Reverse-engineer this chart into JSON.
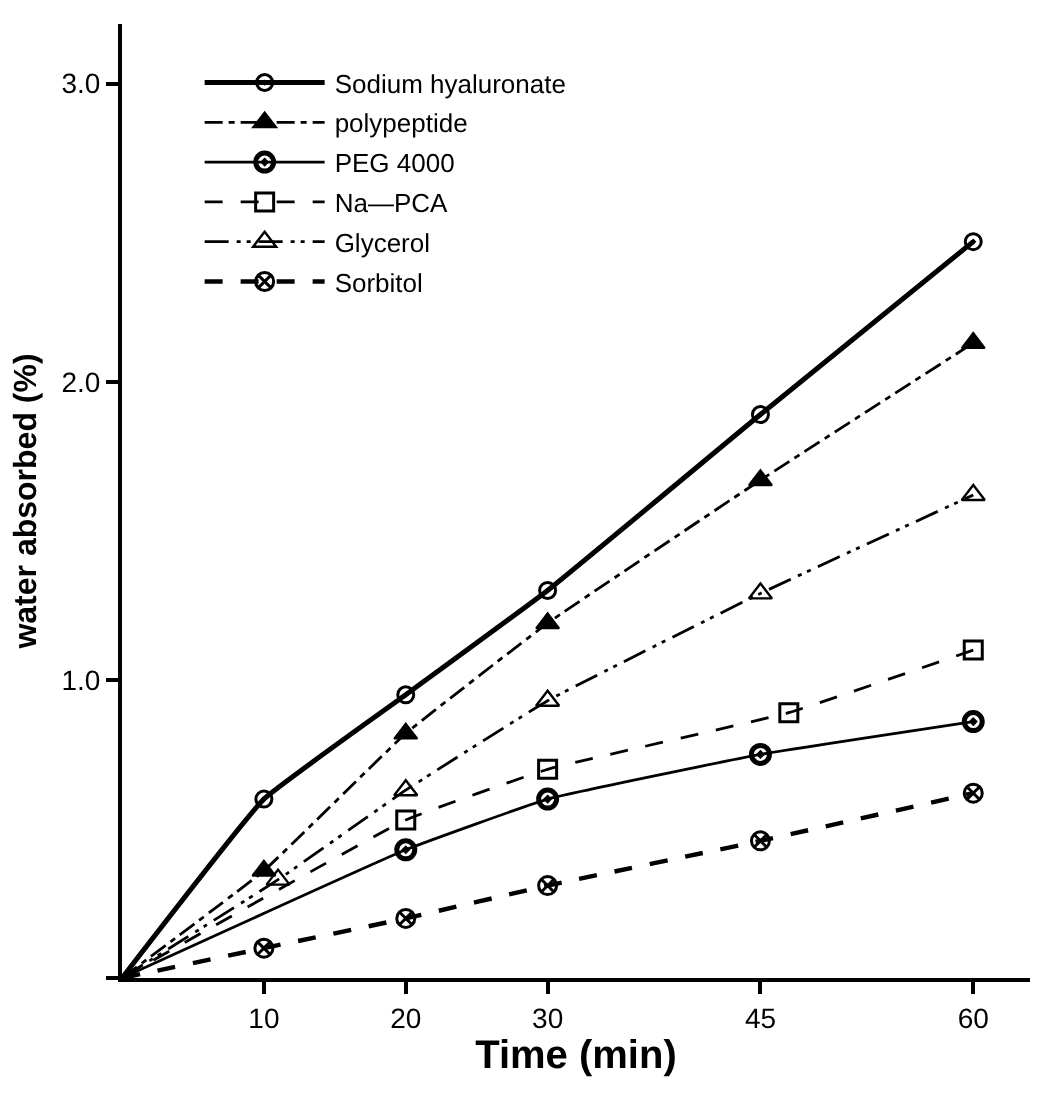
{
  "chart_data": {
    "type": "line",
    "xlabel": "Time (min)",
    "ylabel": "water absorbed (%)",
    "xlim": [
      0,
      64
    ],
    "ylim": [
      0,
      3.2
    ],
    "xticks": [
      10,
      20,
      30,
      45,
      60
    ],
    "yticks": [
      {
        "value": 0,
        "label": null
      },
      {
        "value": 1.0,
        "label": "1.0"
      },
      {
        "value": 2.0,
        "label": "2.0"
      },
      {
        "value": 3.0,
        "label": "3.0"
      }
    ],
    "legend": "top left",
    "series": [
      {
        "name": "Sodium hyaluronate",
        "color": "#000000",
        "marker": "circle",
        "line_style": "solid",
        "x": [
          0,
          10,
          20,
          30,
          45,
          60
        ],
        "values": [
          0,
          0.6,
          0.95,
          1.3,
          1.89,
          2.47
        ]
      },
      {
        "name": "polypeptide",
        "color": "#000000",
        "marker": "triangle",
        "line_style": "dashdot",
        "x": [
          0,
          10,
          20,
          30,
          45,
          60
        ],
        "values": [
          0,
          0.36,
          0.82,
          1.19,
          1.67,
          2.13
        ]
      },
      {
        "name": "PEG 4000",
        "color": "#000000",
        "marker": "circle",
        "line_style": "solid",
        "x": [
          0,
          20,
          30,
          45,
          60
        ],
        "values": [
          0,
          0.43,
          0.6,
          0.75,
          0.86
        ]
      },
      {
        "name": "Na—PCA",
        "color": "#000000",
        "marker": "square",
        "line_style": "dashed",
        "x": [
          0,
          20,
          30,
          47,
          60
        ],
        "values": [
          0,
          0.53,
          0.7,
          0.89,
          1.1
        ]
      },
      {
        "name": "Glycerol",
        "color": "#000000",
        "marker": "triangle",
        "line_style": "dashdotdot",
        "x": [
          0,
          11,
          20,
          30,
          45,
          60
        ],
        "values": [
          0,
          0.33,
          0.63,
          0.93,
          1.29,
          1.62
        ]
      },
      {
        "name": "Sorbitol",
        "color": "#000000",
        "marker": "cross",
        "line_style": "dashed",
        "x": [
          0,
          10,
          20,
          30,
          45,
          60
        ],
        "values": [
          0,
          0.1,
          0.2,
          0.31,
          0.46,
          0.62
        ]
      }
    ]
  }
}
